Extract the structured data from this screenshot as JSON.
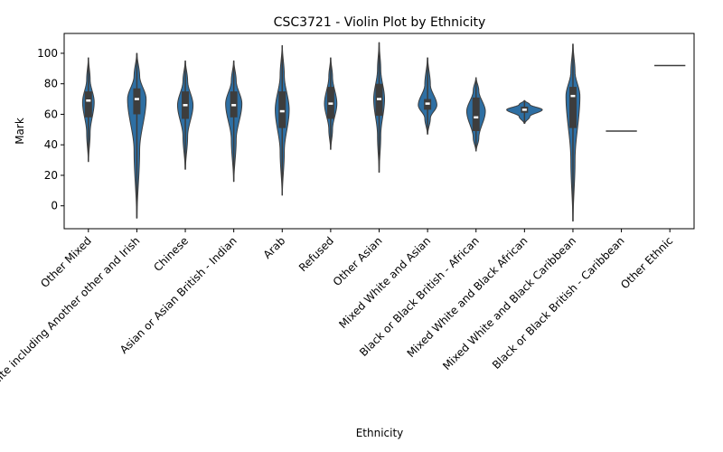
{
  "chart_data": {
    "type": "violin",
    "title": "CSC3721 - Violin Plot by Ethnicity",
    "xlabel": "Ethnicity",
    "ylabel": "Mark",
    "ylim": [
      -15,
      113
    ],
    "yticks": [
      0,
      20,
      40,
      60,
      80,
      100
    ],
    "grid": false,
    "legend": "none",
    "color": "#2e6fa3",
    "box_color": "#3d3d3d",
    "median_color": "#ffffff",
    "categories": [
      "Other Mixed",
      "White including Another other and Irish",
      "Chinese",
      "Asian or Asian British - Indian",
      "Arab",
      "Refused",
      "Other Asian",
      "Mixed White and Asian",
      "Black or Black British - African",
      "Mixed White and Black African",
      "Mixed White and Black Caribbean",
      "Black or Black British - Caribbean",
      "Other Ethnic"
    ],
    "violins": [
      {
        "min": 29,
        "max": 97,
        "q1": 58,
        "median": 69,
        "q3": 75,
        "mode": 68,
        "width": 0.3
      },
      {
        "min": -8,
        "max": 100,
        "q1": 60,
        "median": 70,
        "q3": 77,
        "mode": 70,
        "width": 0.48
      },
      {
        "min": 24,
        "max": 95,
        "q1": 57,
        "median": 66,
        "q3": 75,
        "mode": 66,
        "width": 0.4
      },
      {
        "min": 16,
        "max": 95,
        "q1": 58,
        "median": 66,
        "q3": 75,
        "mode": 67,
        "width": 0.42
      },
      {
        "min": 7,
        "max": 105,
        "q1": 51,
        "median": 62,
        "q3": 75,
        "mode": 63,
        "width": 0.36
      },
      {
        "min": 37,
        "max": 97,
        "q1": 57,
        "median": 67,
        "q3": 78,
        "mode": 67,
        "width": 0.32
      },
      {
        "min": 22,
        "max": 107,
        "q1": 59,
        "median": 70,
        "q3": 80,
        "mode": 70,
        "width": 0.28
      },
      {
        "min": 47,
        "max": 97,
        "q1": 63,
        "median": 67,
        "q3": 70,
        "mode": 66,
        "width": 0.48
      },
      {
        "min": 36,
        "max": 84,
        "q1": 49,
        "median": 58,
        "q3": 71,
        "mode": 62,
        "width": 0.48
      },
      {
        "min": 54,
        "max": 69,
        "q1": 61,
        "median": 63,
        "q3": 65,
        "mode": 63,
        "width": 0.92
      },
      {
        "min": -10,
        "max": 106,
        "q1": 51,
        "median": 72,
        "q3": 78,
        "mode": 72,
        "width": 0.36
      },
      {
        "min": 49,
        "max": 49,
        "q1": 49,
        "median": 49,
        "q3": 49,
        "mode": 49,
        "width": 0.8
      },
      {
        "min": 92,
        "max": 92,
        "q1": 92,
        "median": 92,
        "q3": 92,
        "mode": 92,
        "width": 0.8
      }
    ]
  }
}
